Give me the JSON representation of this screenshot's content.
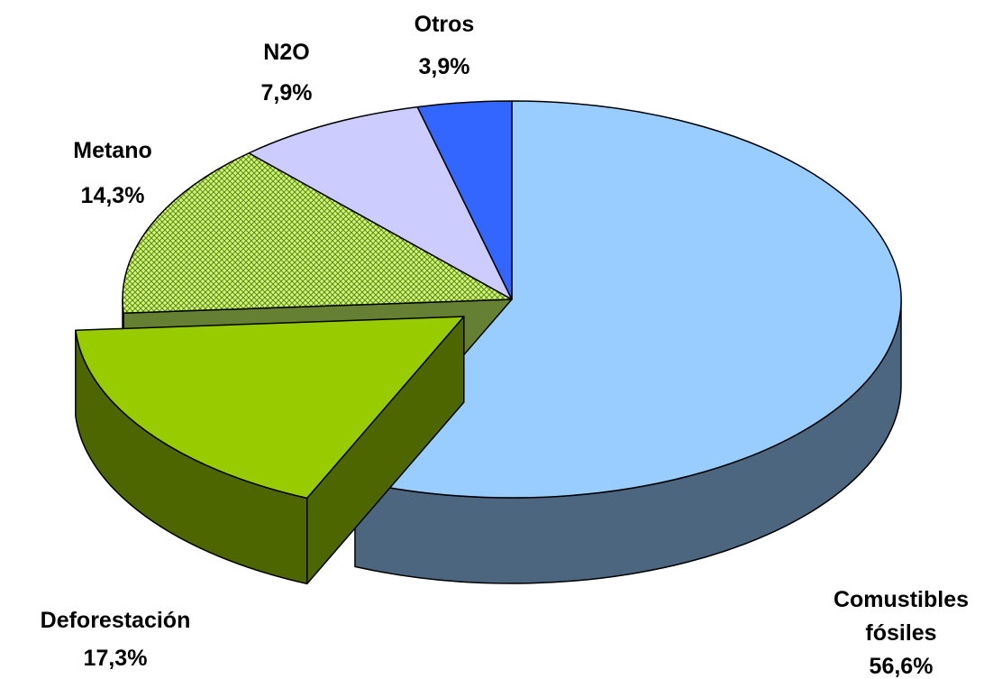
{
  "chart_data": {
    "type": "pie3d",
    "categories": [
      "Comustibles fósiles",
      "Deforestación",
      "Metano",
      "N2O",
      "Otros"
    ],
    "values": [
      56.6,
      17.3,
      14.3,
      7.9,
      3.9
    ],
    "value_labels": [
      "56,6%",
      "17,3%",
      "14,3%",
      "7,9%",
      "3,9%"
    ],
    "colors": [
      "#99ccff",
      "#99cc00",
      "#ccff66",
      "#ccccff",
      "#3366ff"
    ],
    "patterns": [
      "none",
      "none",
      "crosshatch",
      "none",
      "none"
    ],
    "explode": [
      false,
      true,
      false,
      false,
      false
    ]
  }
}
